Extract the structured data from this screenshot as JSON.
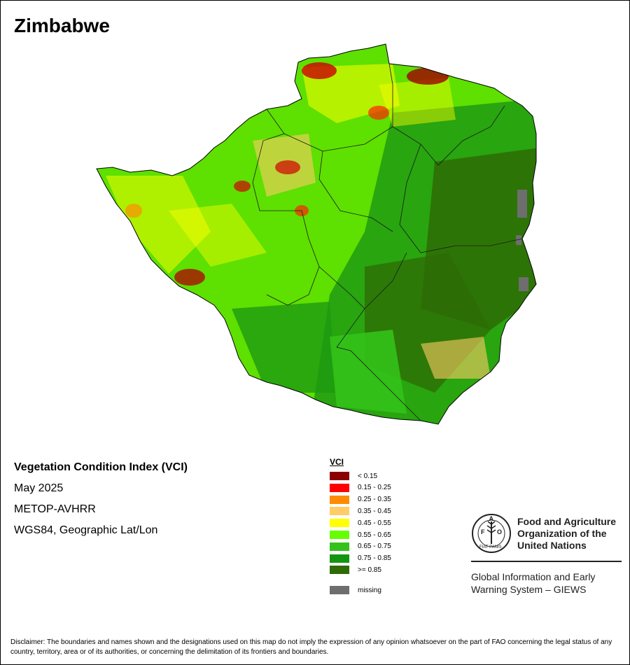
{
  "title": "Zimbabwe",
  "info": {
    "index_name": "Vegetation Condition Index (VCI)",
    "period": "May 2025",
    "sensor": "METOP-AVHRR",
    "projection": "WGS84, Geographic Lat/Lon"
  },
  "legend": {
    "title": "VCI",
    "items": [
      {
        "label": "< 0.15",
        "color": "#8B0000"
      },
      {
        "label": "0.15 - 0.25",
        "color": "#FF0000"
      },
      {
        "label": "0.25 - 0.35",
        "color": "#FF8C00"
      },
      {
        "label": "0.35 - 0.45",
        "color": "#FFCC66"
      },
      {
        "label": "0.45 - 0.55",
        "color": "#FFFF00"
      },
      {
        "label": "0.55 - 0.65",
        "color": "#66FF00"
      },
      {
        "label": "0.65 - 0.75",
        "color": "#33C21A"
      },
      {
        "label": "0.75 - 0.85",
        "color": "#129612"
      },
      {
        "label": ">= 0.85",
        "color": "#2E6B05"
      }
    ],
    "missing": {
      "label": "missing",
      "color": "#6E6E6E"
    }
  },
  "logo": {
    "name_line1": "Food and Agriculture",
    "name_line2": "Organization of the",
    "name_line3": "United Nations",
    "motto": "FIAT PANIS",
    "giews_line1": "Global Information and Early",
    "giews_line2": "Warning System – GIEWS",
    "icon": "fao-wheat-logo-icon"
  },
  "disclaimer": "Disclaimer: The boundaries and names shown and the designations used on this map do not imply the expression of any opinion whatsoever on the part of FAO concerning the legal status of any country, territory, area or of its authorities, or concerning the delimitation of its frontiers and boundaries."
}
